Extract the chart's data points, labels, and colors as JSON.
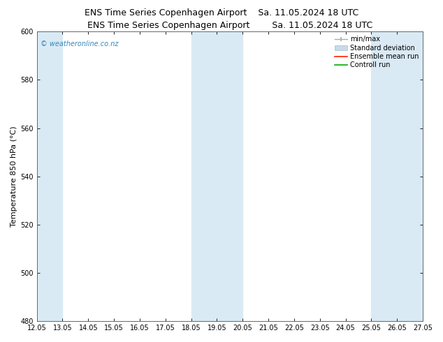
{
  "title_left": "ENS Time Series Copenhagen Airport",
  "title_right": "Sa. 11.05.2024 18 UTC",
  "ylabel": "Temperature 850 hPa (°C)",
  "xlim": [
    12.05,
    27.05
  ],
  "ylim": [
    480,
    600
  ],
  "yticks": [
    480,
    500,
    520,
    540,
    560,
    580,
    600
  ],
  "xtick_labels": [
    "12.05",
    "13.05",
    "14.05",
    "15.05",
    "16.05",
    "17.05",
    "18.05",
    "19.05",
    "20.05",
    "21.05",
    "22.05",
    "23.05",
    "24.05",
    "25.05",
    "26.05",
    "27.05"
  ],
  "xtick_values": [
    12.05,
    13.05,
    14.05,
    15.05,
    16.05,
    17.05,
    18.05,
    19.05,
    20.05,
    21.05,
    22.05,
    23.05,
    24.05,
    25.05,
    26.05,
    27.05
  ],
  "bg_color": "#ffffff",
  "plot_bg_color": "#ffffff",
  "shaded_columns": [
    {
      "x_start": 12.05,
      "x_end": 13.05
    },
    {
      "x_start": 18.05,
      "x_end": 20.05
    },
    {
      "x_start": 25.05,
      "x_end": 27.05
    }
  ],
  "shade_color": "#daeaf5",
  "watermark_text": "© weatheronline.co.nz",
  "watermark_color": "#3388bb",
  "legend_labels": [
    "min/max",
    "Standard deviation",
    "Ensemble mean run",
    "Controll run"
  ],
  "legend_colors": [
    "#999999",
    "#c8dae8",
    "#ff2200",
    "#00aa00"
  ],
  "title_fontsize": 9,
  "tick_fontsize": 7,
  "ylabel_fontsize": 8,
  "legend_fontsize": 7
}
